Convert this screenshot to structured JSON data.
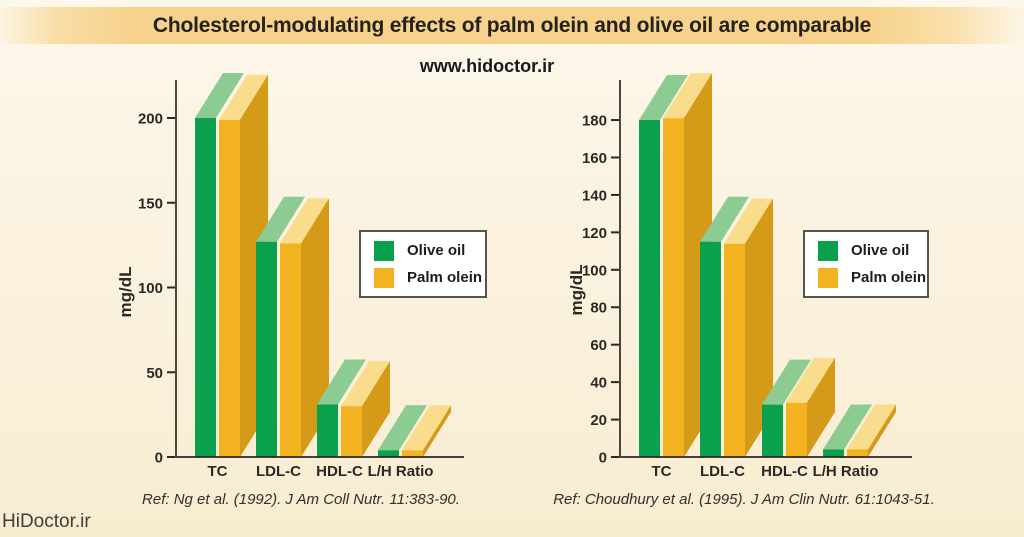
{
  "page": {
    "title": "Cholesterol-modulating effects of palm olein and olive oil are comparable",
    "subtitle": "www.hidoctor.ir",
    "watermark": "HiDoctor.ir"
  },
  "colors": {
    "olive_front": "#0aa04e",
    "olive_top": "#8ccb92",
    "palm_front": "#f3b220",
    "palm_top": "#f9dc8c",
    "palm_side": "#d49a18",
    "axis": "#2c2824",
    "background": "#faf0db",
    "title_band": "#f6d28c",
    "legend_bg": "#ffffff"
  },
  "charts": [
    {
      "ref": "Ref: Ng et al. (1992). J Am Coll Nutr. 11:383-90.",
      "chart_data": {
        "type": "bar",
        "style": "3d-bars",
        "categories": [
          "TC",
          "LDL-C",
          "HDL-C",
          "L/H Ratio"
        ],
        "series": [
          {
            "name": "Olive oil",
            "values": [
              200,
              127,
              31,
              4
            ]
          },
          {
            "name": "Palm olein",
            "values": [
              199,
              126,
              30,
              4
            ]
          }
        ],
        "xlabel": "",
        "ylabel": "mg/dL",
        "ylim": [
          0,
          222
        ],
        "yticks": [
          0,
          50,
          100,
          150,
          200
        ],
        "grid": false,
        "legend_position": "right"
      }
    },
    {
      "ref": "Ref: Choudhury et al. (1995). J Am Clin Nutr. 61:1043-51.",
      "chart_data": {
        "type": "bar",
        "style": "3d-bars",
        "categories": [
          "TC",
          "LDL-C",
          "HDL-C",
          "L/H Ratio"
        ],
        "series": [
          {
            "name": "Olive oil",
            "values": [
              180,
              115,
              28,
              4
            ]
          },
          {
            "name": "Palm olein",
            "values": [
              181,
              114,
              29,
              4
            ]
          }
        ],
        "xlabel": "",
        "ylabel": "mg/dL",
        "ylim": [
          0,
          201
        ],
        "yticks": [
          0,
          20,
          40,
          60,
          80,
          100,
          120,
          140,
          160,
          180
        ],
        "grid": false,
        "legend_position": "right"
      }
    }
  ]
}
